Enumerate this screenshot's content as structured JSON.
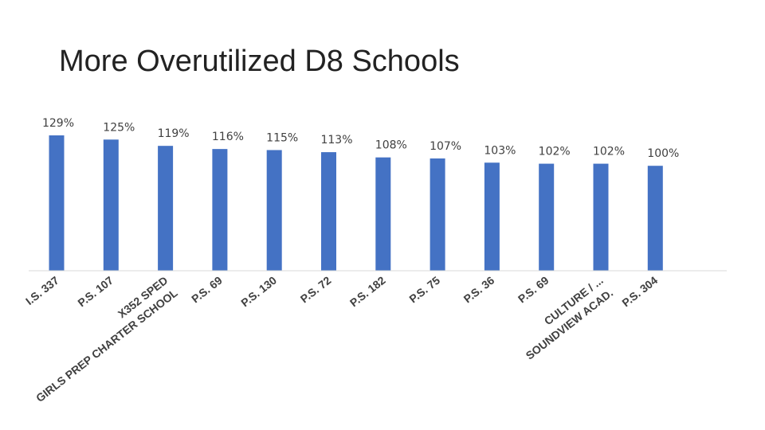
{
  "page": {
    "title": "More Overutilized D8 Schools"
  },
  "chart_data": {
    "type": "bar",
    "title": "More Overutilized D8 Schools",
    "xlabel": "",
    "ylabel": "",
    "ylim": [
      0,
      129
    ],
    "grid": false,
    "legend": "none",
    "bar_color": "#4472C4",
    "categories": [
      "I.S. 337",
      "P.S. 107",
      "GIRLS PREP CHARTER SCHOOL X352 SPED",
      "P.S. 69",
      "P.S. 130",
      "P.S. 72",
      "P.S. 182",
      "P.S. 75",
      "P.S. 36",
      "P.S. 69",
      "SOUNDVIEW ACAD. CULTURE / ...",
      "P.S. 304"
    ],
    "values": [
      129,
      125,
      119,
      116,
      115,
      113,
      108,
      107,
      103,
      102,
      102,
      100
    ],
    "value_labels": [
      "129%",
      "125%",
      "119%",
      "116%",
      "115%",
      "113%",
      "108%",
      "107%",
      "103%",
      "102%",
      "102%",
      "100%"
    ]
  }
}
